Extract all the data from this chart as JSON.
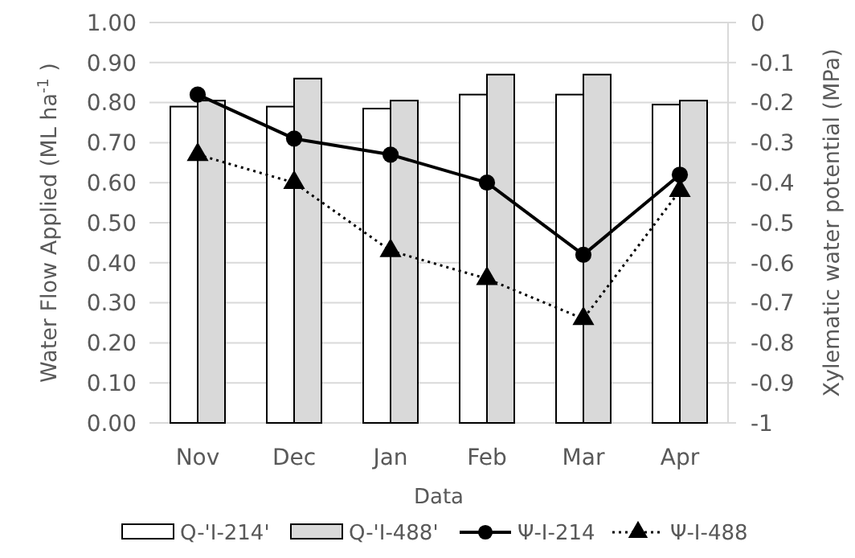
{
  "chart_data": {
    "type": "bar",
    "xlabel": "Data",
    "ylabel": "Water Flow Applied  (ML ha$^{-1}$ )",
    "y2label": "Xylematic water potential (MPa)",
    "categories": [
      "Nov",
      "Dec",
      "Jan",
      "Feb",
      "Mar",
      "Apr"
    ],
    "series": [
      {
        "name": "Q-'I-214'",
        "color": "#ffffff",
        "values": [
          0.79,
          0.79,
          0.785,
          0.82,
          0.82,
          0.795
        ]
      },
      {
        "name": "Q-'I-488'",
        "color": "#d9d9d9",
        "values": [
          0.805,
          0.86,
          0.805,
          0.87,
          0.87,
          0.805
        ]
      },
      {
        "name": "Ψ-I-214",
        "type": "line",
        "axis": "y2",
        "color": "#000000",
        "marker": "circle",
        "line_style": "solid",
        "values": [
          -0.18,
          -0.29,
          -0.33,
          -0.4,
          -0.58,
          -0.38
        ]
      },
      {
        "name": "Ψ-I-488",
        "type": "line",
        "axis": "y2",
        "color": "#000000",
        "marker": "triangle",
        "line_style": "dotted",
        "values": [
          -0.33,
          -0.4,
          -0.57,
          -0.64,
          -0.74,
          -0.42
        ]
      }
    ],
    "ylim": [
      0,
      1
    ],
    "yticks": [
      {
        "value": 0,
        "label": "0.00"
      },
      {
        "value": 0.1,
        "label": "0.10"
      },
      {
        "value": 0.2,
        "label": "0.20"
      },
      {
        "value": 0.3,
        "label": "0.30"
      },
      {
        "value": 0.4,
        "label": "0.40"
      },
      {
        "value": 0.5,
        "label": "0.50"
      },
      {
        "value": 0.6,
        "label": "0.60"
      },
      {
        "value": 0.7,
        "label": "0.70"
      },
      {
        "value": 0.8,
        "label": "0.80"
      },
      {
        "value": 0.9,
        "label": "0.90"
      },
      {
        "value": 1,
        "label": "1.00"
      }
    ],
    "y2lim": [
      -1,
      0
    ],
    "y2ticks": [
      -1,
      -0.9,
      -0.8,
      -0.7,
      -0.6,
      -0.5,
      -0.4,
      -0.3,
      -0.2,
      -0.1,
      0
    ],
    "grid": "y",
    "legend": "bottom"
  }
}
